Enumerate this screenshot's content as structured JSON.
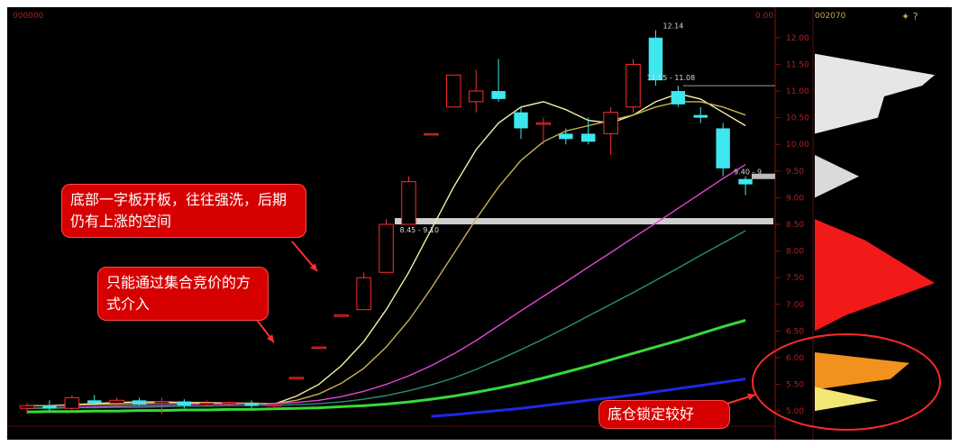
{
  "chart_data": {
    "type": "candlestick",
    "header": {
      "code_left": "000000",
      "code_right": "002070",
      "label_right_small": "0.00"
    },
    "price_axis": {
      "ylim": [
        4.8,
        12.2
      ],
      "ticks": [
        "12.00",
        "11.50",
        "11.00",
        "10.50",
        "10.00",
        "9.50",
        "9.00",
        "8.50",
        "8.00",
        "7.50",
        "7.00",
        "6.50",
        "6.00",
        "5.50",
        "5.00"
      ]
    },
    "price_annotations": [
      {
        "text": "12.14",
        "price": 12.14
      },
      {
        "text": "11.05 - 11.08",
        "price": 11.1
      },
      {
        "text": "8.45 - 9.10",
        "price": 8.55
      },
      {
        "text": "9.40 - 9",
        "price": 9.4
      }
    ],
    "candles": [
      {
        "o": 5.05,
        "h": 5.15,
        "l": 4.95,
        "c": 5.1
      },
      {
        "o": 5.1,
        "h": 5.2,
        "l": 5.0,
        "c": 5.05
      },
      {
        "o": 5.05,
        "h": 5.3,
        "l": 5.0,
        "c": 5.25
      },
      {
        "o": 5.2,
        "h": 5.3,
        "l": 5.1,
        "c": 5.15
      },
      {
        "o": 5.15,
        "h": 5.25,
        "l": 5.1,
        "c": 5.2
      },
      {
        "o": 5.2,
        "h": 5.25,
        "l": 5.1,
        "c": 5.12
      },
      {
        "o": 5.15,
        "h": 5.25,
        "l": 4.95,
        "c": 5.18
      },
      {
        "o": 5.18,
        "h": 5.22,
        "l": 5.05,
        "c": 5.1
      },
      {
        "o": 5.12,
        "h": 5.2,
        "l": 5.08,
        "c": 5.15
      },
      {
        "o": 5.15,
        "h": 5.18,
        "l": 5.1,
        "c": 5.16
      },
      {
        "o": 5.15,
        "h": 5.2,
        "l": 5.05,
        "c": 5.1
      },
      {
        "o": 5.1,
        "h": 5.15,
        "l": 5.05,
        "c": 5.12
      },
      {
        "o": 5.63,
        "h": 5.63,
        "l": 5.63,
        "c": 5.63
      },
      {
        "o": 6.2,
        "h": 6.2,
        "l": 6.2,
        "c": 6.2
      },
      {
        "o": 6.8,
        "h": 6.8,
        "l": 6.8,
        "c": 6.8
      },
      {
        "o": 6.9,
        "h": 7.6,
        "l": 6.9,
        "c": 7.5
      },
      {
        "o": 7.6,
        "h": 8.6,
        "l": 7.6,
        "c": 8.5
      },
      {
        "o": 8.5,
        "h": 9.4,
        "l": 8.5,
        "c": 9.3
      },
      {
        "o": 10.2,
        "h": 10.2,
        "l": 10.2,
        "c": 10.2
      },
      {
        "o": 10.7,
        "h": 11.3,
        "l": 10.7,
        "c": 11.3
      },
      {
        "o": 10.8,
        "h": 11.4,
        "l": 10.6,
        "c": 11.0
      },
      {
        "o": 11.0,
        "h": 11.6,
        "l": 10.8,
        "c": 10.85
      },
      {
        "o": 10.6,
        "h": 10.7,
        "l": 10.1,
        "c": 10.3
      },
      {
        "o": 10.4,
        "h": 10.5,
        "l": 10.0,
        "c": 10.4
      },
      {
        "o": 10.2,
        "h": 10.3,
        "l": 10.0,
        "c": 10.1
      },
      {
        "o": 10.2,
        "h": 10.5,
        "l": 10.0,
        "c": 10.05
      },
      {
        "o": 10.2,
        "h": 10.7,
        "l": 9.8,
        "c": 10.6
      },
      {
        "o": 10.7,
        "h": 11.6,
        "l": 10.6,
        "c": 11.5
      },
      {
        "o": 12.0,
        "h": 12.14,
        "l": 11.1,
        "c": 11.2
      },
      {
        "o": 11.0,
        "h": 11.1,
        "l": 10.7,
        "c": 10.75
      },
      {
        "o": 10.55,
        "h": 10.7,
        "l": 10.4,
        "c": 10.5
      },
      {
        "o": 10.3,
        "h": 10.4,
        "l": 9.4,
        "c": 9.55
      },
      {
        "o": 9.35,
        "h": 9.4,
        "l": 9.05,
        "c": 9.25
      }
    ],
    "ma_series": [
      {
        "color": "#f4efa8",
        "values": [
          5.1,
          5.1,
          5.12,
          5.14,
          5.16,
          5.17,
          5.17,
          5.16,
          5.16,
          5.15,
          5.14,
          5.13,
          5.28,
          5.5,
          5.85,
          6.3,
          6.9,
          7.6,
          8.4,
          9.2,
          9.9,
          10.4,
          10.7,
          10.8,
          10.65,
          10.45,
          10.4,
          10.55,
          10.8,
          10.95,
          10.85,
          10.6,
          10.35
        ]
      },
      {
        "color": "#c9b24e",
        "values": [
          5.1,
          5.1,
          5.11,
          5.12,
          5.13,
          5.14,
          5.15,
          5.15,
          5.15,
          5.15,
          5.15,
          5.14,
          5.2,
          5.32,
          5.52,
          5.8,
          6.2,
          6.7,
          7.3,
          7.95,
          8.6,
          9.2,
          9.7,
          10.05,
          10.25,
          10.35,
          10.45,
          10.55,
          10.7,
          10.8,
          10.8,
          10.7,
          10.55
        ]
      },
      {
        "color": "#e046d8",
        "values": [
          5.05,
          5.06,
          5.07,
          5.08,
          5.09,
          5.1,
          5.11,
          5.12,
          5.13,
          5.13,
          5.14,
          5.14,
          5.16,
          5.2,
          5.27,
          5.37,
          5.5,
          5.66,
          5.85,
          6.07,
          6.32,
          6.6,
          6.88,
          7.15,
          7.42,
          7.7,
          7.97,
          8.25,
          8.52,
          8.8,
          9.08,
          9.36,
          9.62
        ]
      },
      {
        "color": "#2a8f7a",
        "values": [
          5.05,
          5.05,
          5.06,
          5.06,
          5.07,
          5.07,
          5.08,
          5.09,
          5.09,
          5.1,
          5.1,
          5.11,
          5.12,
          5.14,
          5.17,
          5.22,
          5.29,
          5.38,
          5.49,
          5.62,
          5.78,
          5.96,
          6.15,
          6.35,
          6.56,
          6.78,
          7.0,
          7.22,
          7.45,
          7.68,
          7.92,
          8.15,
          8.38
        ]
      },
      {
        "color": "#37d83a",
        "values": [
          4.98,
          4.99,
          4.99,
          5.0,
          5.0,
          5.01,
          5.01,
          5.02,
          5.02,
          5.03,
          5.03,
          5.04,
          5.05,
          5.06,
          5.08,
          5.1,
          5.13,
          5.17,
          5.22,
          5.28,
          5.35,
          5.43,
          5.52,
          5.62,
          5.73,
          5.84,
          5.96,
          6.08,
          6.2,
          6.32,
          6.45,
          6.58,
          6.7
        ]
      },
      {
        "color": "#1f28e8",
        "values": [
          null,
          null,
          null,
          null,
          null,
          null,
          null,
          null,
          null,
          null,
          null,
          null,
          null,
          null,
          null,
          null,
          null,
          null,
          4.9,
          4.93,
          4.97,
          5.01,
          5.05,
          5.1,
          5.15,
          5.2,
          5.25,
          5.3,
          5.36,
          5.42,
          5.48,
          5.54,
          5.6
        ]
      }
    ],
    "profile": [
      {
        "price": 11.3,
        "value": 0.95
      },
      {
        "price": 11.1,
        "value": 0.85
      },
      {
        "price": 10.9,
        "value": 0.55
      },
      {
        "price": 10.5,
        "value": 0.5
      },
      {
        "price": 9.4,
        "value": 0.35
      },
      {
        "price": 8.2,
        "value": 0.4
      },
      {
        "price": 7.4,
        "value": 0.95
      },
      {
        "price": 6.8,
        "value": 0.25
      },
      {
        "price": 5.9,
        "value": 0.75
      },
      {
        "price": 5.6,
        "value": 0.6
      },
      {
        "price": 5.2,
        "value": 0.5
      }
    ],
    "annotations": [
      {
        "text": "底部一字板开板，往往强洗，后期仍有上涨的空间"
      },
      {
        "text": "只能通过集合竞价的方式介入"
      },
      {
        "text": "底仓锁定较好"
      }
    ]
  }
}
